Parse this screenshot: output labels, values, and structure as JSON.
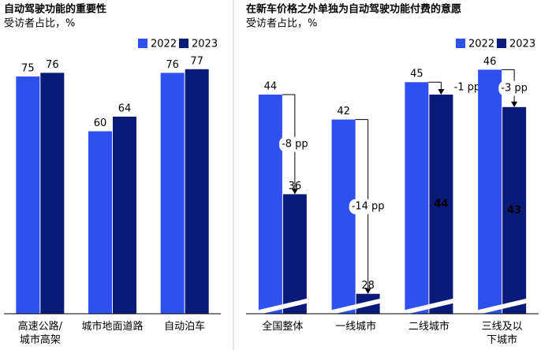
{
  "chart_data": [
    {
      "type": "bar",
      "title": "自动驾驶功能的重要性",
      "subtitle": "受访者占比，%",
      "categories": [
        "高速公路/\n城市高架",
        "城市地面道路",
        "自动泊车"
      ],
      "series": [
        {
          "name": "2022",
          "color": "#2e50ef",
          "values": [
            75,
            60,
            76
          ]
        },
        {
          "name": "2023",
          "color": "#0a1a79",
          "values": [
            76,
            64,
            77
          ]
        }
      ],
      "ylim": [
        10,
        83
      ],
      "legend": "top-right"
    },
    {
      "type": "bar",
      "title": "在新车价格之外单独为自动驾驶功能付费的意愿",
      "subtitle": "受访者占比，%",
      "categories": [
        "全国整体",
        "一线城市",
        "二线城市",
        "三线及以\n下城市"
      ],
      "series": [
        {
          "name": "2022",
          "color": "#2e50ef",
          "values": [
            44,
            42,
            45,
            46
          ]
        },
        {
          "name": "2023",
          "color": "#0a1a79",
          "values": [
            36,
            28,
            44,
            43
          ]
        }
      ],
      "annotations": [
        "-8 pp",
        "-14 pp",
        "-1 pp",
        "-3 pp"
      ],
      "ylim": [
        26.4,
        47.8
      ],
      "legend": "top-right",
      "broken_axis": true
    }
  ]
}
